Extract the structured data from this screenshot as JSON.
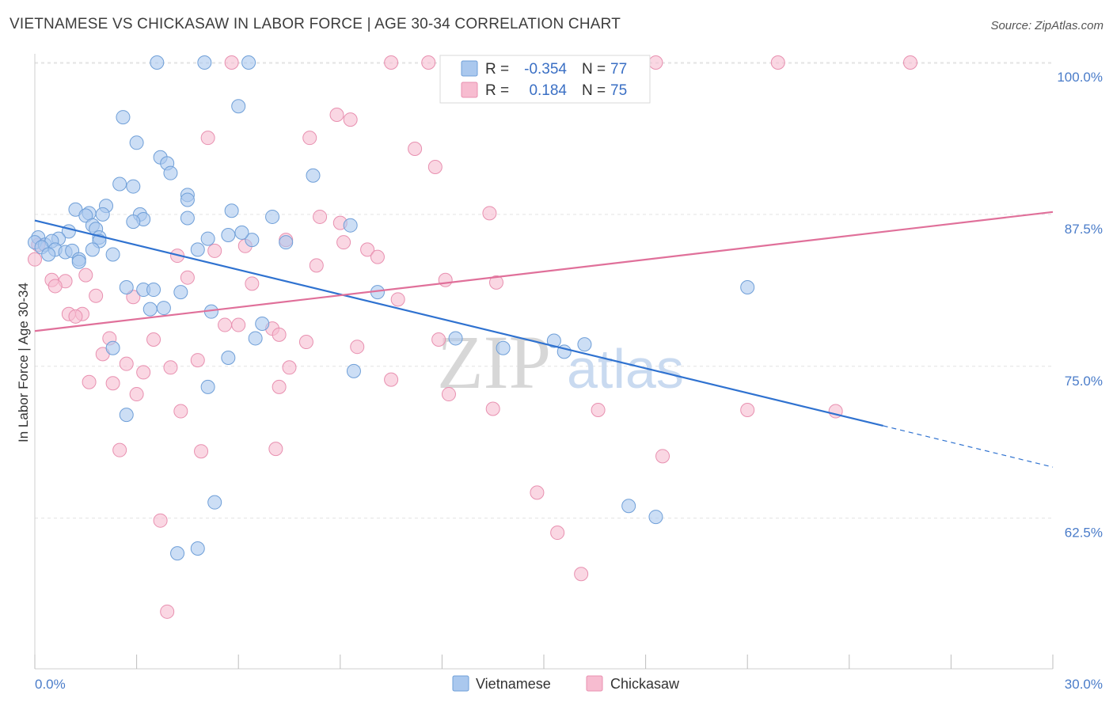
{
  "title": "VIETNAMESE VS CHICKASAW IN LABOR FORCE | AGE 30-34 CORRELATION CHART",
  "source": "Source: ZipAtlas.com",
  "watermark": {
    "zip": "ZIP",
    "atlas": "atlas"
  },
  "colors": {
    "blue_fill": "#aac8ee",
    "blue_stroke": "#6f9fd8",
    "blue_line": "#2f72d0",
    "pink_fill": "#f7bcd0",
    "pink_stroke": "#e890b0",
    "pink_line": "#e0709a",
    "tick_text": "#4a7cc9",
    "grid": "#e3e3e3"
  },
  "legend": {
    "rows": [
      {
        "r_label": "R =",
        "r_value": "-0.354",
        "n_label": "N =",
        "n_value": "77"
      },
      {
        "r_label": "R =",
        "r_value": "0.184",
        "n_label": "N =",
        "n_value": "75"
      }
    ]
  },
  "bottom_legend": [
    "Vietnamese",
    "Chickasaw"
  ],
  "chart_data": {
    "type": "scatter",
    "title": "VIETNAMESE VS CHICKASAW IN LABOR FORCE | AGE 30-34 CORRELATION CHART",
    "xlabel": "",
    "ylabel": "In Labor Force | Age 30-34",
    "xlim": [
      0,
      30
    ],
    "ylim": [
      51.5,
      101.5
    ],
    "x_ticks_labels": [
      "0.0%",
      "30.0%"
    ],
    "y_ticks": [
      62.5,
      75.0,
      87.5,
      100.0
    ],
    "y_tick_labels": [
      "62.5%",
      "75.0%",
      "87.5%",
      "100.0%"
    ],
    "grid": true,
    "legend_position": "top-center",
    "series": [
      {
        "name": "Vietnamese",
        "r": -0.354,
        "n": 77,
        "trend": {
          "x0": 0,
          "y0": 87.0,
          "x1": 25.0,
          "y1": 70.1,
          "x_dash_end": 30.0,
          "y_dash_end": 66.7
        },
        "points": [
          [
            3.6,
            100.0
          ],
          [
            5.0,
            100.0
          ],
          [
            6.3,
            100.0
          ],
          [
            6.0,
            96.4
          ],
          [
            2.6,
            95.5
          ],
          [
            3.0,
            93.4
          ],
          [
            3.7,
            92.2
          ],
          [
            3.9,
            91.7
          ],
          [
            4.0,
            90.9
          ],
          [
            8.2,
            90.7
          ],
          [
            2.5,
            90.0
          ],
          [
            2.9,
            89.8
          ],
          [
            4.5,
            89.1
          ],
          [
            4.5,
            88.7
          ],
          [
            1.2,
            87.9
          ],
          [
            1.6,
            87.6
          ],
          [
            2.1,
            88.2
          ],
          [
            2.0,
            87.5
          ],
          [
            3.1,
            87.5
          ],
          [
            1.5,
            87.4
          ],
          [
            5.8,
            87.8
          ],
          [
            7.0,
            87.3
          ],
          [
            3.2,
            87.1
          ],
          [
            4.5,
            87.2
          ],
          [
            2.9,
            86.9
          ],
          [
            1.7,
            86.6
          ],
          [
            9.3,
            86.6
          ],
          [
            1.8,
            86.3
          ],
          [
            1.0,
            86.1
          ],
          [
            5.7,
            85.8
          ],
          [
            0.1,
            85.6
          ],
          [
            0.7,
            85.5
          ],
          [
            1.9,
            85.6
          ],
          [
            5.1,
            85.5
          ],
          [
            6.4,
            85.4
          ],
          [
            0.0,
            85.2
          ],
          [
            0.3,
            85.0
          ],
          [
            0.5,
            85.3
          ],
          [
            1.9,
            85.3
          ],
          [
            0.2,
            84.8
          ],
          [
            0.6,
            84.6
          ],
          [
            4.8,
            84.6
          ],
          [
            1.7,
            84.6
          ],
          [
            0.9,
            84.4
          ],
          [
            1.1,
            84.5
          ],
          [
            0.4,
            84.2
          ],
          [
            2.3,
            84.2
          ],
          [
            1.3,
            83.8
          ],
          [
            1.3,
            83.6
          ],
          [
            2.7,
            81.5
          ],
          [
            3.2,
            81.3
          ],
          [
            3.5,
            81.3
          ],
          [
            4.3,
            81.1
          ],
          [
            10.1,
            81.1
          ],
          [
            21.0,
            81.5
          ],
          [
            3.4,
            79.7
          ],
          [
            3.8,
            79.8
          ],
          [
            5.2,
            79.5
          ],
          [
            6.7,
            78.5
          ],
          [
            6.5,
            77.3
          ],
          [
            12.4,
            77.3
          ],
          [
            15.3,
            77.1
          ],
          [
            15.6,
            76.2
          ],
          [
            2.3,
            76.5
          ],
          [
            5.7,
            75.7
          ],
          [
            9.4,
            74.6
          ],
          [
            5.1,
            73.3
          ],
          [
            2.7,
            71.0
          ],
          [
            5.3,
            63.8
          ],
          [
            17.5,
            63.5
          ],
          [
            18.3,
            62.6
          ],
          [
            4.8,
            60.0
          ],
          [
            4.2,
            59.6
          ],
          [
            13.8,
            76.5
          ],
          [
            16.2,
            76.8
          ],
          [
            7.4,
            85.2
          ],
          [
            6.1,
            86.0
          ]
        ]
      },
      {
        "name": "Chickasaw",
        "r": 0.184,
        "n": 75,
        "trend": {
          "x0": 0,
          "y0": 77.9,
          "x1": 30.0,
          "y1": 87.7
        },
        "points": [
          [
            5.8,
            100.0
          ],
          [
            10.5,
            100.0
          ],
          [
            11.6,
            100.0
          ],
          [
            16.7,
            100.0
          ],
          [
            18.3,
            100.0
          ],
          [
            21.9,
            100.0
          ],
          [
            25.8,
            100.0
          ],
          [
            8.9,
            95.7
          ],
          [
            9.3,
            95.3
          ],
          [
            5.1,
            93.8
          ],
          [
            8.1,
            93.8
          ],
          [
            11.2,
            92.9
          ],
          [
            11.8,
            91.4
          ],
          [
            8.4,
            87.3
          ],
          [
            13.4,
            87.6
          ],
          [
            9.0,
            86.8
          ],
          [
            7.4,
            85.4
          ],
          [
            9.1,
            85.2
          ],
          [
            6.2,
            84.9
          ],
          [
            9.8,
            84.6
          ],
          [
            10.1,
            84.0
          ],
          [
            5.3,
            84.5
          ],
          [
            4.2,
            84.1
          ],
          [
            0.0,
            83.8
          ],
          [
            8.3,
            83.3
          ],
          [
            4.5,
            82.3
          ],
          [
            0.5,
            82.1
          ],
          [
            0.9,
            82.0
          ],
          [
            6.4,
            81.8
          ],
          [
            12.1,
            82.1
          ],
          [
            13.6,
            81.9
          ],
          [
            0.6,
            81.6
          ],
          [
            1.8,
            80.8
          ],
          [
            2.9,
            80.7
          ],
          [
            10.7,
            80.5
          ],
          [
            1.0,
            79.3
          ],
          [
            1.4,
            79.3
          ],
          [
            1.2,
            79.1
          ],
          [
            5.6,
            78.4
          ],
          [
            6.0,
            78.4
          ],
          [
            7.0,
            78.1
          ],
          [
            7.2,
            77.6
          ],
          [
            2.2,
            77.3
          ],
          [
            3.5,
            77.2
          ],
          [
            8.0,
            77.0
          ],
          [
            11.9,
            77.2
          ],
          [
            9.5,
            76.6
          ],
          [
            2.0,
            76.0
          ],
          [
            4.8,
            75.5
          ],
          [
            2.7,
            75.2
          ],
          [
            3.2,
            74.5
          ],
          [
            4.0,
            74.9
          ],
          [
            7.5,
            74.9
          ],
          [
            1.6,
            73.7
          ],
          [
            2.3,
            73.6
          ],
          [
            10.5,
            73.9
          ],
          [
            7.2,
            73.3
          ],
          [
            3.0,
            72.7
          ],
          [
            12.2,
            72.7
          ],
          [
            13.5,
            71.5
          ],
          [
            4.3,
            71.3
          ],
          [
            16.6,
            71.4
          ],
          [
            21.0,
            71.4
          ],
          [
            23.6,
            71.3
          ],
          [
            2.5,
            68.1
          ],
          [
            4.9,
            68.0
          ],
          [
            7.1,
            68.2
          ],
          [
            18.5,
            67.6
          ],
          [
            14.8,
            64.6
          ],
          [
            3.7,
            62.3
          ],
          [
            15.4,
            61.3
          ],
          [
            16.1,
            57.9
          ],
          [
            3.9,
            54.8
          ],
          [
            0.1,
            85.0
          ],
          [
            1.5,
            82.5
          ]
        ]
      }
    ]
  }
}
